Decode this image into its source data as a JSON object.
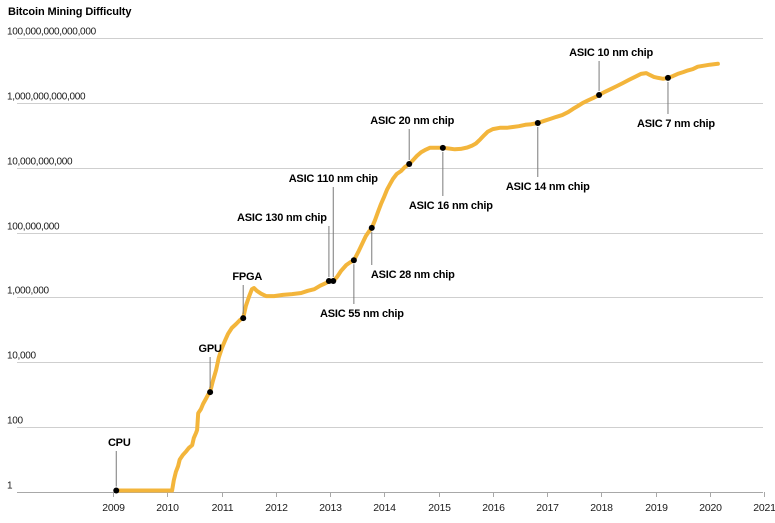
{
  "title": "Bitcoin Mining Difficulty",
  "colors": {
    "line": "#F3B53B",
    "grid": "#cfcfcf",
    "axis": "#a8a8a8",
    "connector": "#7a7a7a",
    "dot": "#000000",
    "text": "#1a1a1a"
  },
  "chart_data": {
    "type": "line",
    "title": "Bitcoin Mining Difficulty",
    "x_axis": {
      "ticks": [
        2009,
        2010,
        2011,
        2012,
        2013,
        2014,
        2015,
        2016,
        2017,
        2018,
        2019,
        2020,
        2021
      ],
      "range": [
        2009,
        2021
      ]
    },
    "y_axis": {
      "scale": "log",
      "tick_values": [
        1,
        100,
        10000,
        1000000,
        100000000,
        10000000000,
        1000000000000,
        100000000000000
      ],
      "tick_labels": [
        "1",
        "100",
        "10,000",
        "1,000,000",
        "100,000,000",
        "10,000,000,000",
        "1,000,000,000,000",
        "100,000,000,000,000"
      ],
      "range_log10": [
        0,
        14
      ]
    },
    "grid": true,
    "legend": "none",
    "series": [
      {
        "name": "Bitcoin mining difficulty",
        "points": [
          [
            2009.06,
            1
          ],
          [
            2010.09,
            1
          ],
          [
            2010.12,
            2.3
          ],
          [
            2010.16,
            4.2
          ],
          [
            2010.2,
            6.3
          ],
          [
            2010.23,
            10
          ],
          [
            2010.29,
            14
          ],
          [
            2010.35,
            18
          ],
          [
            2010.4,
            23
          ],
          [
            2010.46,
            28
          ],
          [
            2010.49,
            46
          ],
          [
            2010.53,
            66
          ],
          [
            2010.55,
            81
          ],
          [
            2010.57,
            270
          ],
          [
            2010.62,
            360
          ],
          [
            2010.66,
            520
          ],
          [
            2010.71,
            740
          ],
          [
            2010.75,
            980
          ],
          [
            2010.79,
            1200
          ],
          [
            2010.84,
            2600
          ],
          [
            2010.9,
            5800
          ],
          [
            2010.95,
            14000
          ],
          [
            2011.01,
            28000
          ],
          [
            2011.06,
            45000
          ],
          [
            2011.12,
            75000
          ],
          [
            2011.19,
            114000
          ],
          [
            2011.27,
            152000
          ],
          [
            2011.34,
            200000
          ],
          [
            2011.4,
            230000
          ],
          [
            2011.45,
            550000
          ],
          [
            2011.51,
            1100000.0
          ],
          [
            2011.56,
            1800000.0
          ],
          [
            2011.6,
            1950000.0
          ],
          [
            2011.65,
            1600000.0
          ],
          [
            2011.73,
            1300000.0
          ],
          [
            2011.82,
            1100000.0
          ],
          [
            2011.97,
            1100000.0
          ],
          [
            2012.13,
            1200000.0
          ],
          [
            2012.3,
            1270000.0
          ],
          [
            2012.47,
            1370000.0
          ],
          [
            2012.59,
            1600000.0
          ],
          [
            2012.71,
            1800000.0
          ],
          [
            2012.82,
            2300000.0
          ],
          [
            2012.93,
            2800000.0
          ],
          [
            2012.98,
            3200000.0
          ],
          [
            2013.06,
            3200000.0
          ],
          [
            2013.13,
            4300000.0
          ],
          [
            2013.2,
            6500000.0
          ],
          [
            2013.3,
            10000000.0
          ],
          [
            2013.37,
            12000000.0
          ],
          [
            2013.44,
            14000000.0
          ],
          [
            2013.52,
            25000000.0
          ],
          [
            2013.59,
            44000000.0
          ],
          [
            2013.66,
            78000000.0
          ],
          [
            2013.72,
            110000000.0
          ],
          [
            2013.77,
            140000000.0
          ],
          [
            2013.83,
            240000000.0
          ],
          [
            2013.89,
            460000000.0
          ],
          [
            2013.94,
            760000000.0
          ],
          [
            2014.0,
            1300000000.0
          ],
          [
            2014.05,
            2100000000.0
          ],
          [
            2014.11,
            3200000000.0
          ],
          [
            2014.16,
            4500000000.0
          ],
          [
            2014.23,
            6400000000.0
          ],
          [
            2014.31,
            7900000000.0
          ],
          [
            2014.38,
            10500000000.0
          ],
          [
            2014.46,
            13000000000.0
          ],
          [
            2014.53,
            17000000000.0
          ],
          [
            2014.6,
            23000000000.0
          ],
          [
            2014.68,
            30000000000.0
          ],
          [
            2014.75,
            35000000000.0
          ],
          [
            2014.84,
            41000000000.0
          ],
          [
            2014.95,
            41000000000.0
          ],
          [
            2015.08,
            41000000000.0
          ],
          [
            2015.19,
            39000000000.0
          ],
          [
            2015.3,
            37000000000.0
          ],
          [
            2015.41,
            38000000000.0
          ],
          [
            2015.53,
            42000000000.0
          ],
          [
            2015.62,
            48000000000.0
          ],
          [
            2015.69,
            56000000000.0
          ],
          [
            2015.77,
            75000000000.0
          ],
          [
            2015.84,
            100000000000.0
          ],
          [
            2015.91,
            130000000000.0
          ],
          [
            2016.0,
            155000000000.0
          ],
          [
            2016.13,
            170000000000.0
          ],
          [
            2016.26,
            170000000000.0
          ],
          [
            2016.37,
            180000000000.0
          ],
          [
            2016.48,
            190000000000.0
          ],
          [
            2016.6,
            210000000000.0
          ],
          [
            2016.71,
            220000000000.0
          ],
          [
            2016.83,
            240000000000.0
          ],
          [
            2016.95,
            280000000000.0
          ],
          [
            2017.06,
            320000000000.0
          ],
          [
            2017.17,
            370000000000.0
          ],
          [
            2017.28,
            420000000000.0
          ],
          [
            2017.39,
            520000000000.0
          ],
          [
            2017.48,
            650000000000.0
          ],
          [
            2017.57,
            800000000000.0
          ],
          [
            2017.66,
            1000000000000.0
          ],
          [
            2017.76,
            1200000000000.0
          ],
          [
            2017.85,
            1400000000000.0
          ],
          [
            2017.96,
            1750000000000.0
          ],
          [
            2018.07,
            2200000000000.0
          ],
          [
            2018.18,
            2700000000000.0
          ],
          [
            2018.29,
            3300000000000.0
          ],
          [
            2018.4,
            4100000000000.0
          ],
          [
            2018.51,
            5100000000000.0
          ],
          [
            2018.62,
            6300000000000.0
          ],
          [
            2018.73,
            7800000000000.0
          ],
          [
            2018.83,
            8300000000000.0
          ],
          [
            2018.9,
            7200000000000.0
          ],
          [
            2018.97,
            6300000000000.0
          ],
          [
            2019.05,
            5900000000000.0
          ],
          [
            2019.14,
            5500000000000.0
          ],
          [
            2019.23,
            5900000000000.0
          ],
          [
            2019.32,
            6700000000000.0
          ],
          [
            2019.41,
            7800000000000.0
          ],
          [
            2019.51,
            8900000000000.0
          ],
          [
            2019.6,
            10000000000000.0
          ],
          [
            2019.69,
            11000000000000.0
          ],
          [
            2019.78,
            13000000000000.0
          ],
          [
            2019.89,
            14000000000000.0
          ],
          [
            2020.0,
            15000000000000.0
          ],
          [
            2020.15,
            16000000000000.0
          ]
        ]
      }
    ],
    "annotations": [
      {
        "label": "CPU",
        "year": 2009.06,
        "value": 1,
        "side": "above",
        "dx": 3,
        "ly": 442
      },
      {
        "label": "GPU",
        "year": 2010.79,
        "value": 1200,
        "side": "above",
        "dx": 0,
        "ly": 348
      },
      {
        "label": "FPGA",
        "year": 2011.4,
        "value": 230000,
        "side": "above",
        "dx": 4,
        "ly": 276
      },
      {
        "label": "ASIC 130 nm chip",
        "year": 2012.98,
        "value": 3200000,
        "side": "above",
        "dx": -47,
        "ly": 217
      },
      {
        "label": "ASIC 110 nm chip",
        "year": 2013.06,
        "value": 3200000,
        "side": "above",
        "dx": 0,
        "ly": 178
      },
      {
        "label": "ASIC 55 nm chip",
        "year": 2013.44,
        "value": 14000000,
        "side": "below",
        "dx": 8,
        "ly": 313
      },
      {
        "label": "ASIC 28 nm chip",
        "year": 2013.77,
        "value": 140000000,
        "side": "below",
        "dx": 41,
        "ly": 274
      },
      {
        "label": "ASIC 20 nm chip",
        "year": 2014.46,
        "value": 13000000000,
        "side": "above",
        "dx": 3,
        "ly": 120
      },
      {
        "label": "ASIC 16 nm chip",
        "year": 2015.08,
        "value": 41000000000,
        "side": "below",
        "dx": 8,
        "ly": 205
      },
      {
        "label": "ASIC 14 nm chip",
        "year": 2016.83,
        "value": 240000000000,
        "side": "below",
        "dx": 10,
        "ly": 186
      },
      {
        "label": "ASIC 10 nm chip",
        "year": 2017.96,
        "value": 1750000000000,
        "side": "above",
        "dx": 12,
        "ly": 52
      },
      {
        "label": "ASIC 7 nm chip",
        "year": 2019.23,
        "value": 5900000000000,
        "side": "below",
        "dx": 8,
        "ly": 123
      }
    ]
  }
}
